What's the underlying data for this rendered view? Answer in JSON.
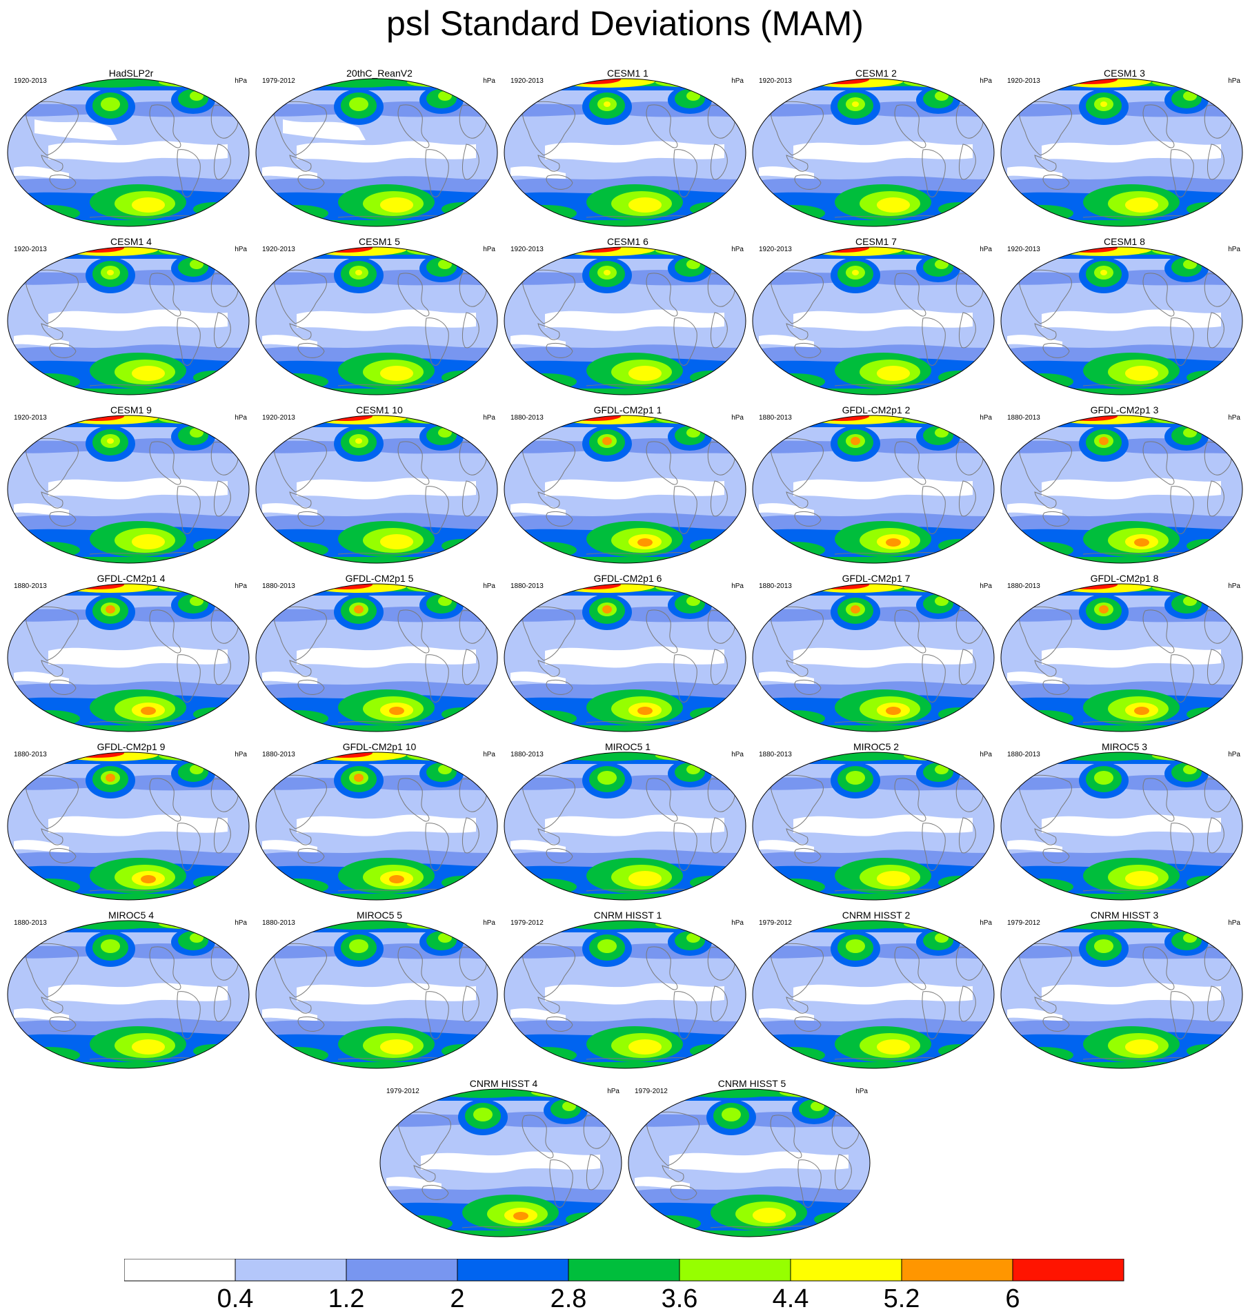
{
  "title": "psl Standard Deviations (MAM)",
  "units": "hPa",
  "panels": [
    {
      "name": "HadSLP2r",
      "period": "1920-2013"
    },
    {
      "name": "20thC_ReanV2",
      "period": "1979-2012"
    },
    {
      "name": "CESM1 1",
      "period": "1920-2013"
    },
    {
      "name": "CESM1 2",
      "period": "1920-2013"
    },
    {
      "name": "CESM1 3",
      "period": "1920-2013"
    },
    {
      "name": "CESM1 4",
      "period": "1920-2013"
    },
    {
      "name": "CESM1 5",
      "period": "1920-2013"
    },
    {
      "name": "CESM1 6",
      "period": "1920-2013"
    },
    {
      "name": "CESM1 7",
      "period": "1920-2013"
    },
    {
      "name": "CESM1 8",
      "period": "1920-2013"
    },
    {
      "name": "CESM1 9",
      "period": "1920-2013"
    },
    {
      "name": "CESM1 10",
      "period": "1920-2013"
    },
    {
      "name": "GFDL-CM2p1 1",
      "period": "1880-2013"
    },
    {
      "name": "GFDL-CM2p1 2",
      "period": "1880-2013"
    },
    {
      "name": "GFDL-CM2p1 3",
      "period": "1880-2013"
    },
    {
      "name": "GFDL-CM2p1 4",
      "period": "1880-2013"
    },
    {
      "name": "GFDL-CM2p1 5",
      "period": "1880-2013"
    },
    {
      "name": "GFDL-CM2p1 6",
      "period": "1880-2013"
    },
    {
      "name": "GFDL-CM2p1 7",
      "period": "1880-2013"
    },
    {
      "name": "GFDL-CM2p1 8",
      "period": "1880-2013"
    },
    {
      "name": "GFDL-CM2p1 9",
      "period": "1880-2013"
    },
    {
      "name": "GFDL-CM2p1 10",
      "period": "1880-2013"
    },
    {
      "name": "MIROC5 1",
      "period": "1880-2013"
    },
    {
      "name": "MIROC5 2",
      "period": "1880-2013"
    },
    {
      "name": "MIROC5 3",
      "period": "1880-2013"
    },
    {
      "name": "MIROC5 4",
      "period": "1880-2013"
    },
    {
      "name": "MIROC5 5",
      "period": "1880-2013"
    },
    {
      "name": "CNRM HISST 1",
      "period": "1979-2012"
    },
    {
      "name": "CNRM HISST 2",
      "period": "1979-2012"
    },
    {
      "name": "CNRM HISST 3",
      "period": "1979-2012"
    },
    {
      "name": "CNRM HISST 4",
      "period": "1979-2012"
    },
    {
      "name": "CNRM HISST 5",
      "period": "1979-2012"
    }
  ],
  "colorbar": {
    "colors": [
      "#ffffff",
      "#b4c7fa",
      "#7896f0",
      "#0064f0",
      "#00be3c",
      "#96ff00",
      "#ffff00",
      "#ff9600",
      "#ff1400"
    ],
    "labels": [
      "0.4",
      "1.2",
      "2",
      "2.8",
      "3.6",
      "4.4",
      "5.2",
      "6"
    ]
  }
}
